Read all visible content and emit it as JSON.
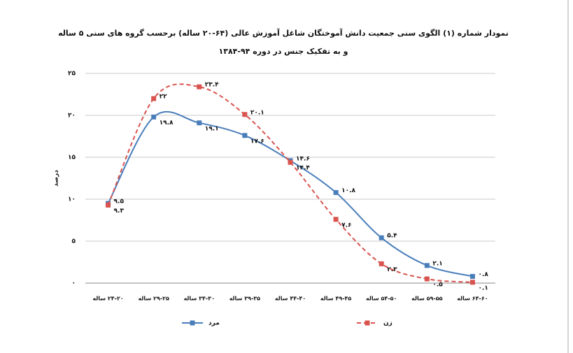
{
  "chart_data": {
    "type": "line",
    "title": "نمودار شماره (۱) الگوی سنی جمعیت دانش آموختگان شاغل آموزش عالی (۶۴-۲۰ ساله) برحسب گروه های سنی ۵ ساله",
    "subtitle": "و به تفکیک جنس در دوره ۹۴-۱۳۸۴",
    "y_label": "درصد",
    "categories": [
      "۲۴-۲۰ ساله",
      "۲۹-۲۵ ساله",
      "۳۴-۳۰ ساله",
      "۳۹-۳۵ ساله",
      "۴۴-۴۰ ساله",
      "۴۹-۴۵ ساله",
      "۵۴-۵۰ ساله",
      "۵۹-۵۵ ساله",
      "۶۴-۶۰ ساله"
    ],
    "series": [
      {
        "name": "مرد",
        "color": "#4a7ebb",
        "dash": false,
        "values": [
          9.5,
          19.8,
          19.1,
          17.6,
          14.6,
          10.8,
          5.4,
          2.1,
          0.8
        ],
        "value_labels": [
          "۹.۵",
          "۱۹.۸",
          "۱۹.۱",
          "۱۷.۶",
          "۱۴.۶",
          "۱۰.۸",
          "۵.۴",
          "۲.۱",
          "۰.۸"
        ]
      },
      {
        "name": "زن",
        "color": "#d9534f",
        "dash": true,
        "values": [
          9.3,
          22,
          23.4,
          20.1,
          14.4,
          7.6,
          2.3,
          0.5,
          0.1
        ],
        "value_labels": [
          "۹.۳",
          "۲۲",
          "۲۳.۴",
          "۲۰.۱",
          "۱۴.۴",
          "۷.۶",
          "۲.۳",
          "۰.۵",
          "۰.۱"
        ]
      }
    ],
    "ylim": [
      0,
      25
    ],
    "yticks": [
      {
        "value": 0,
        "label": "۰"
      },
      {
        "value": 5,
        "label": "۵"
      },
      {
        "value": 10,
        "label": "۱۰"
      },
      {
        "value": 15,
        "label": "۱۵"
      },
      {
        "value": 20,
        "label": "۲۰"
      },
      {
        "value": 25,
        "label": "۲۵"
      }
    ],
    "grid": true,
    "smooth": true
  }
}
